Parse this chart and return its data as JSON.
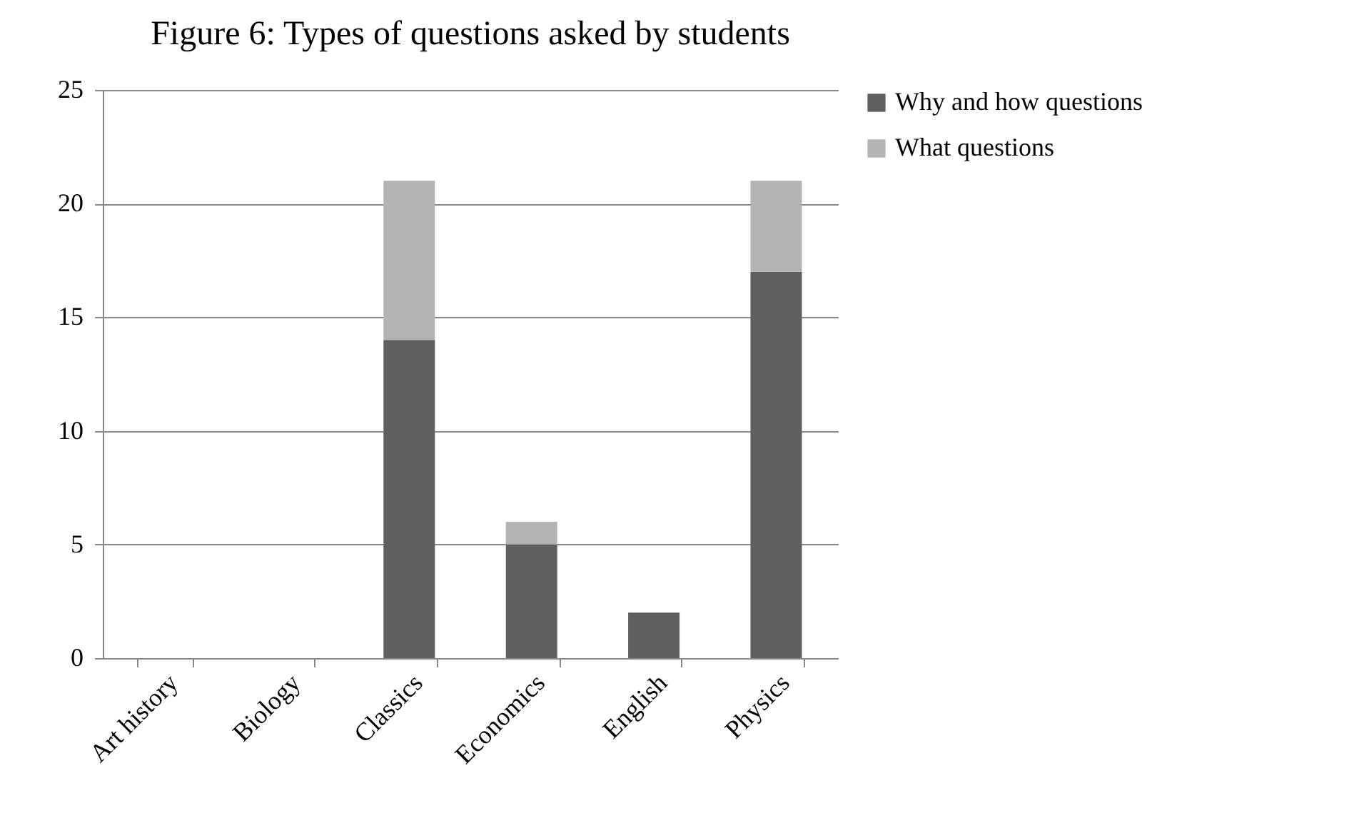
{
  "chart_data": {
    "type": "bar",
    "title": "Figure 6: Types of questions asked by students",
    "categories": [
      "Art history",
      "Biology",
      "Classics",
      "Economics",
      "English",
      "Physics"
    ],
    "series": [
      {
        "name": "Why and how questions",
        "color": "#5f5f5f",
        "values": [
          0,
          0,
          14,
          5,
          2,
          17
        ]
      },
      {
        "name": "What questions",
        "color": "#b3b3b3",
        "values": [
          0,
          0,
          7,
          1,
          0,
          4
        ]
      }
    ],
    "stacked": true,
    "ylim": [
      0,
      25
    ],
    "yticks": [
      0,
      5,
      10,
      15,
      20,
      25
    ],
    "grid": "y",
    "legend": "right"
  }
}
